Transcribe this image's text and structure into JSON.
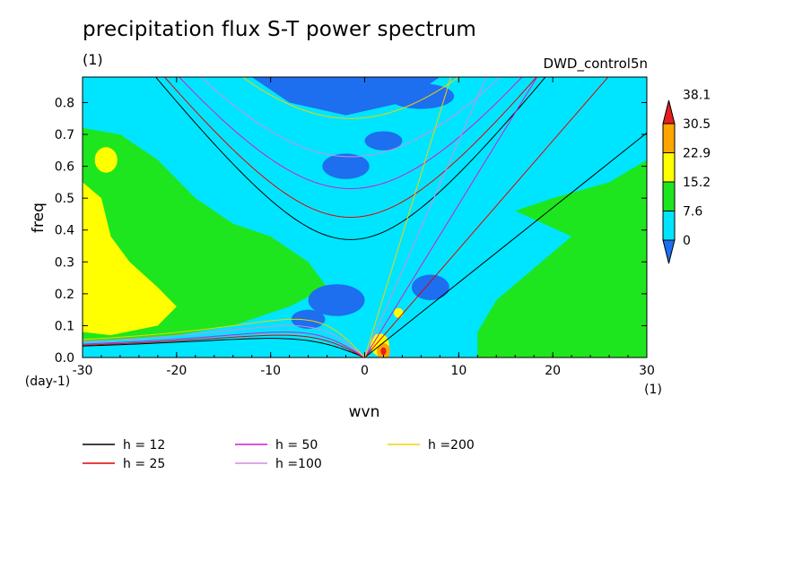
{
  "title": "precipitation flux S-T power spectrum",
  "units_label": "(1)",
  "dataset_label": "DWD_control5n",
  "colors": {
    "contour_levels": [
      "#1E6EF0",
      "#00E5FF",
      "#1EE61E",
      "#FFFF00",
      "#FFA500",
      "#E61E1E"
    ],
    "lines": {
      "h12": "#000000",
      "h25": "#E00000",
      "h50": "#D01ACD",
      "h100": "#D08CE0",
      "h200": "#F0D200"
    }
  },
  "chart_data": {
    "type": "heatmap",
    "title": "precipitation flux S-T power spectrum",
    "xlabel": "wvn",
    "ylabel": "freq",
    "x_unit_label": "(1)",
    "y_unit_label": "(day-1)",
    "xlim": [
      -30,
      30
    ],
    "ylim": [
      0,
      0.88
    ],
    "x_ticks": [
      -30,
      -20,
      -10,
      0,
      10,
      20,
      30
    ],
    "y_ticks": [
      0.0,
      0.1,
      0.2,
      0.3,
      0.4,
      0.5,
      0.6,
      0.7,
      0.8
    ],
    "colorbar": {
      "levels": [
        "0",
        "7.6",
        "15.2",
        "22.9",
        "30.5",
        "38.1"
      ],
      "colors": [
        "#1E6EF0",
        "#00E5FF",
        "#1EE61E",
        "#FFFF00",
        "#FFA500",
        "#E61E1E"
      ]
    },
    "legend": [
      {
        "label": "h = 12",
        "color": "#000000"
      },
      {
        "label": "h = 25",
        "color": "#E00000"
      },
      {
        "label": "h = 50",
        "color": "#D01ACD"
      },
      {
        "label": "h =100",
        "color": "#D08CE0"
      },
      {
        "label": "h =200",
        "color": "#F0D200"
      }
    ],
    "dispersion_curves": {
      "inertia_gravity_min_freq": {
        "h12": 0.37,
        "h25": 0.44,
        "h50": 0.53,
        "h100": 0.63,
        "h200": 0.75
      },
      "rossby_max_freq": {
        "h12": 0.06,
        "h25": 0.07,
        "h50": 0.08,
        "h100": 0.1,
        "h200": 0.12
      }
    }
  }
}
